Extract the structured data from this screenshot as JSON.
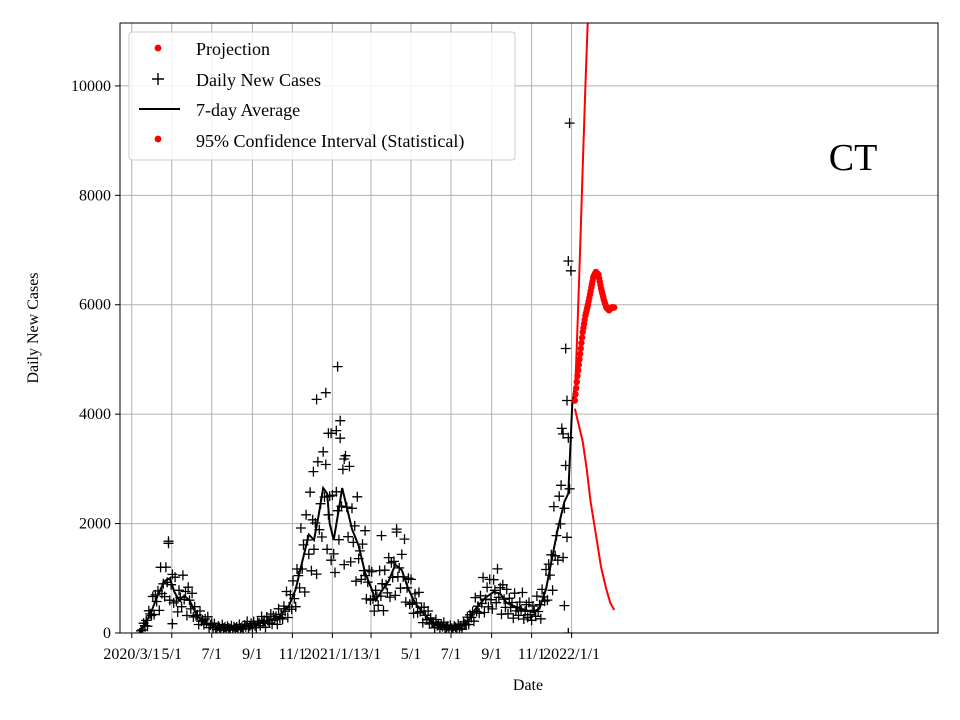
{
  "chart_data": {
    "type": "scatter",
    "xlabel": "Date",
    "ylabel": "Daily New Cases",
    "annotation": "CT",
    "x_unit": "days since 2020-03-01",
    "xlim": [
      -18,
      1230
    ],
    "ylim": [
      0,
      11150
    ],
    "grid": true,
    "legend_position": "upper-left",
    "legend": [
      "Projection",
      "Daily New Cases",
      "7-day Average",
      "95% Confidence Interval (Statistical)"
    ],
    "x_ticks": [
      {
        "day": 0,
        "label": "2020/3/1"
      },
      {
        "day": 61,
        "label": "5/1"
      },
      {
        "day": 122,
        "label": "7/1"
      },
      {
        "day": 184,
        "label": "9/1"
      },
      {
        "day": 245,
        "label": "11/1"
      },
      {
        "day": 306,
        "label": "2021/1/1"
      },
      {
        "day": 365,
        "label": "3/1"
      },
      {
        "day": 426,
        "label": "5/1"
      },
      {
        "day": 487,
        "label": "7/1"
      },
      {
        "day": 549,
        "label": "9/1"
      },
      {
        "day": 610,
        "label": "11/1"
      },
      {
        "day": 671,
        "label": "2022/1/1"
      }
    ],
    "y_ticks": [
      0,
      2000,
      4000,
      6000,
      8000,
      10000
    ],
    "average_anchors": [
      [
        12,
        0
      ],
      [
        20,
        150
      ],
      [
        30,
        400
      ],
      [
        40,
        700
      ],
      [
        50,
        950
      ],
      [
        58,
        1000
      ],
      [
        65,
        750
      ],
      [
        72,
        600
      ],
      [
        80,
        680
      ],
      [
        88,
        600
      ],
      [
        100,
        300
      ],
      [
        115,
        180
      ],
      [
        130,
        100
      ],
      [
        150,
        90
      ],
      [
        170,
        110
      ],
      [
        190,
        160
      ],
      [
        210,
        230
      ],
      [
        225,
        300
      ],
      [
        240,
        500
      ],
      [
        250,
        800
      ],
      [
        260,
        1300
      ],
      [
        270,
        1800
      ],
      [
        278,
        1700
      ],
      [
        285,
        2150
      ],
      [
        292,
        2650
      ],
      [
        298,
        2550
      ],
      [
        302,
        2000
      ],
      [
        308,
        1700
      ],
      [
        315,
        2200
      ],
      [
        321,
        2650
      ],
      [
        328,
        2300
      ],
      [
        336,
        1900
      ],
      [
        346,
        1600
      ],
      [
        356,
        1100
      ],
      [
        366,
        800
      ],
      [
        372,
        600
      ],
      [
        380,
        750
      ],
      [
        392,
        950
      ],
      [
        402,
        1250
      ],
      [
        412,
        1150
      ],
      [
        422,
        800
      ],
      [
        432,
        550
      ],
      [
        446,
        350
      ],
      [
        460,
        180
      ],
      [
        480,
        100
      ],
      [
        500,
        100
      ],
      [
        512,
        200
      ],
      [
        525,
        450
      ],
      [
        540,
        650
      ],
      [
        552,
        750
      ],
      [
        562,
        720
      ],
      [
        572,
        550
      ],
      [
        585,
        480
      ],
      [
        600,
        420
      ],
      [
        612,
        380
      ],
      [
        622,
        450
      ],
      [
        632,
        800
      ],
      [
        640,
        1300
      ],
      [
        650,
        1900
      ],
      [
        660,
        2400
      ],
      [
        666,
        2550
      ],
      [
        672,
        4200
      ],
      [
        676,
        4500
      ]
    ],
    "daily_deviations": [
      0.95,
      1.25,
      0.7,
      1.4,
      0.85,
      0.6,
      1.3,
      1.05,
      0.75,
      1.6,
      0.9,
      1.15,
      0.5,
      1.35,
      1.0,
      0.8,
      1.45,
      0.65,
      1.2,
      0.9,
      1.1,
      0.55,
      1.5,
      0.85,
      1.0,
      0.7,
      1.25,
      0.95,
      1.7,
      0.6
    ],
    "daily_extremes": [
      [
        56,
        1640
      ],
      [
        62,
        170
      ],
      [
        277,
        2950
      ],
      [
        282,
        4270
      ],
      [
        296,
        3080
      ],
      [
        300,
        3650
      ],
      [
        304,
        3650
      ],
      [
        312,
        3700
      ],
      [
        314,
        4870
      ],
      [
        318,
        3560
      ],
      [
        324,
        3180
      ],
      [
        356,
        1050
      ],
      [
        381,
        1780
      ],
      [
        404,
        1900
      ],
      [
        655,
        2700
      ],
      [
        658,
        3640
      ],
      [
        662,
        5200
      ],
      [
        664,
        4250
      ],
      [
        666,
        6800
      ],
      [
        668,
        9320
      ],
      [
        670,
        6620
      ],
      [
        660,
        500
      ],
      [
        666,
        0
      ]
    ],
    "projection_anchors": [
      [
        676,
        4250
      ],
      [
        680,
        4700
      ],
      [
        684,
        5100
      ],
      [
        688,
        5500
      ],
      [
        692,
        5800
      ],
      [
        696,
        6000
      ],
      [
        700,
        6250
      ],
      [
        704,
        6500
      ],
      [
        708,
        6600
      ],
      [
        712,
        6550
      ],
      [
        716,
        6300
      ],
      [
        720,
        6100
      ],
      [
        724,
        5950
      ],
      [
        728,
        5900
      ],
      [
        732,
        5950
      ],
      [
        736,
        5950
      ]
    ],
    "ci_upper_anchors": [
      [
        676,
        4300
      ],
      [
        680,
        5600
      ],
      [
        684,
        7000
      ],
      [
        688,
        8500
      ],
      [
        692,
        10000
      ],
      [
        696,
        11300
      ]
    ],
    "ci_lower_anchors": [
      [
        676,
        4100
      ],
      [
        682,
        3800
      ],
      [
        688,
        3500
      ],
      [
        694,
        3000
      ],
      [
        700,
        2400
      ],
      [
        708,
        1800
      ],
      [
        716,
        1200
      ],
      [
        724,
        800
      ],
      [
        730,
        550
      ],
      [
        736,
        420
      ]
    ]
  }
}
